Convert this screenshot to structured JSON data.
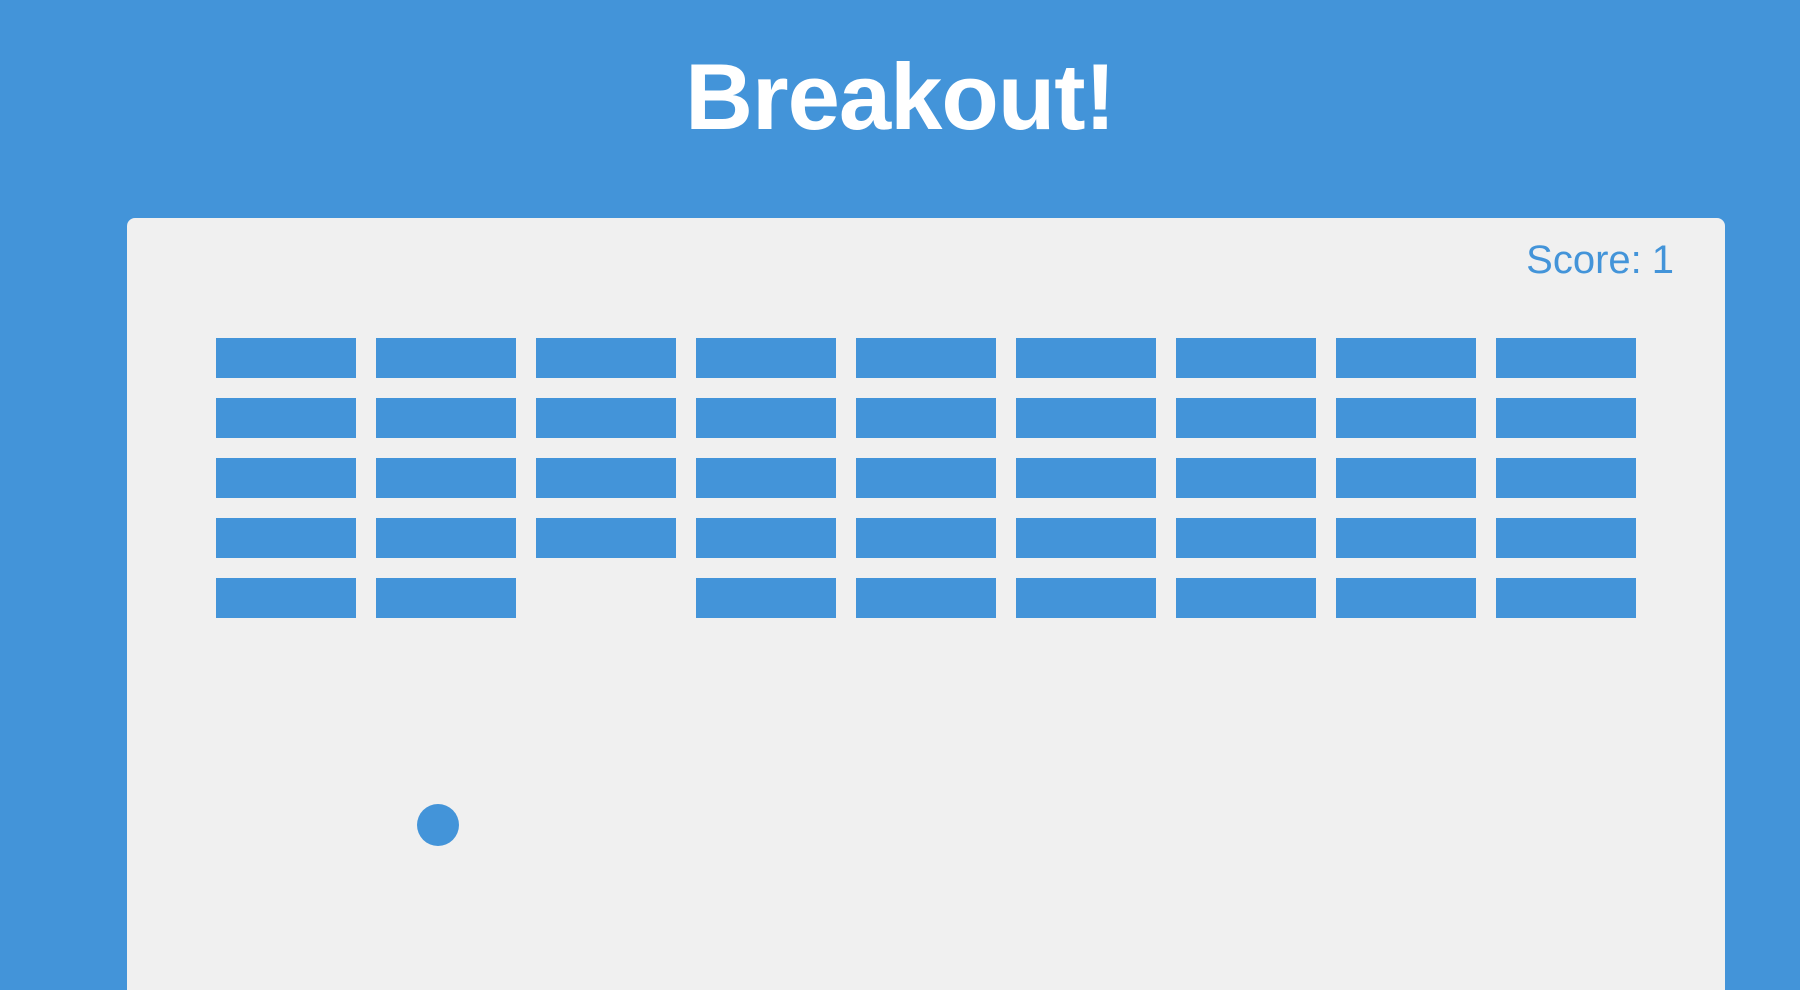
{
  "title": "Breakout!",
  "score": {
    "label": "Score:",
    "value": "1"
  },
  "colors": {
    "background": "#4394d9",
    "board": "#f0f0f0",
    "brick": "#4394d9",
    "text": "#ffffff"
  },
  "bricks": {
    "rows": 5,
    "cols": 9,
    "grid": [
      [
        1,
        1,
        1,
        1,
        1,
        1,
        1,
        1,
        1
      ],
      [
        1,
        1,
        1,
        1,
        1,
        1,
        1,
        1,
        1
      ],
      [
        1,
        1,
        1,
        1,
        1,
        1,
        1,
        1,
        1
      ],
      [
        1,
        1,
        1,
        1,
        1,
        1,
        1,
        1,
        1
      ],
      [
        1,
        1,
        0,
        1,
        1,
        1,
        1,
        1,
        1
      ]
    ]
  }
}
